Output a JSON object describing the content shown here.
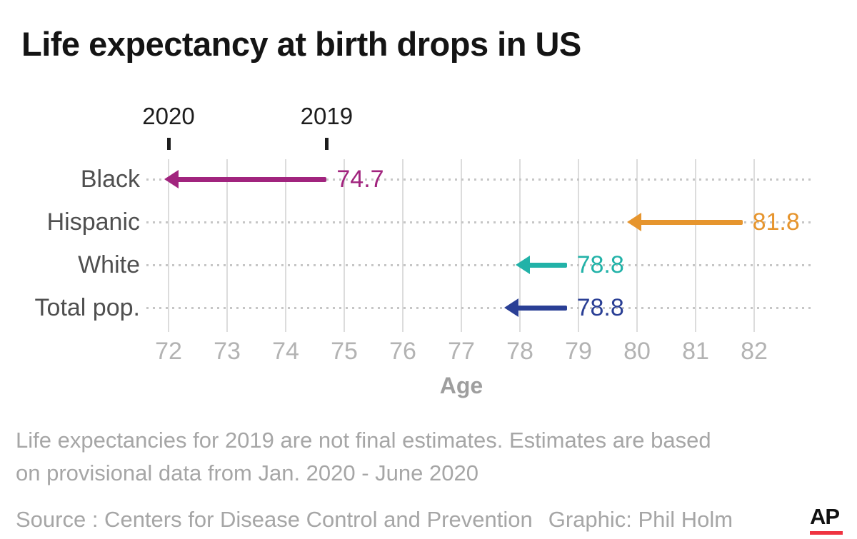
{
  "title": "Life expectancy at birth drops in US",
  "chart_data": {
    "type": "arrow",
    "title": "Life expectancy at birth drops in US",
    "xlabel": "Age",
    "xlim": [
      72,
      82
    ],
    "x_ticks": [
      72,
      73,
      74,
      75,
      76,
      77,
      78,
      79,
      80,
      81,
      82
    ],
    "grid": true,
    "legend_position": "none",
    "categories": [
      "Black",
      "Hispanic",
      "White",
      "Total pop."
    ],
    "series": [
      {
        "category": "Black",
        "value_2019": 74.7,
        "value_2020": 72.0,
        "value_label": "74.7",
        "color": "#a1247e"
      },
      {
        "category": "Hispanic",
        "value_2019": 81.8,
        "value_2020": 79.9,
        "value_label": "81.8",
        "color": "#e6952e"
      },
      {
        "category": "White",
        "value_2019": 78.8,
        "value_2020": 78.0,
        "value_label": "78.8",
        "color": "#22b2a8"
      },
      {
        "category": "Total pop.",
        "value_2019": 78.8,
        "value_2020": 77.8,
        "value_label": "78.8",
        "color": "#2a3f95"
      }
    ],
    "annotations": [
      {
        "label": "2020",
        "x": 72.0
      },
      {
        "label": "2019",
        "x": 74.7
      }
    ]
  },
  "footnote": {
    "line1": "Life expectancies for 2019 are not final estimates. Estimates are based",
    "line2": "on provisional data from Jan. 2020 - June 2020"
  },
  "footer": {
    "source": "Source : Centers for Disease Control and Prevention",
    "credit": "Graphic: Phil Holm",
    "logo": "AP",
    "logo_underline_color": "#ef3340"
  }
}
